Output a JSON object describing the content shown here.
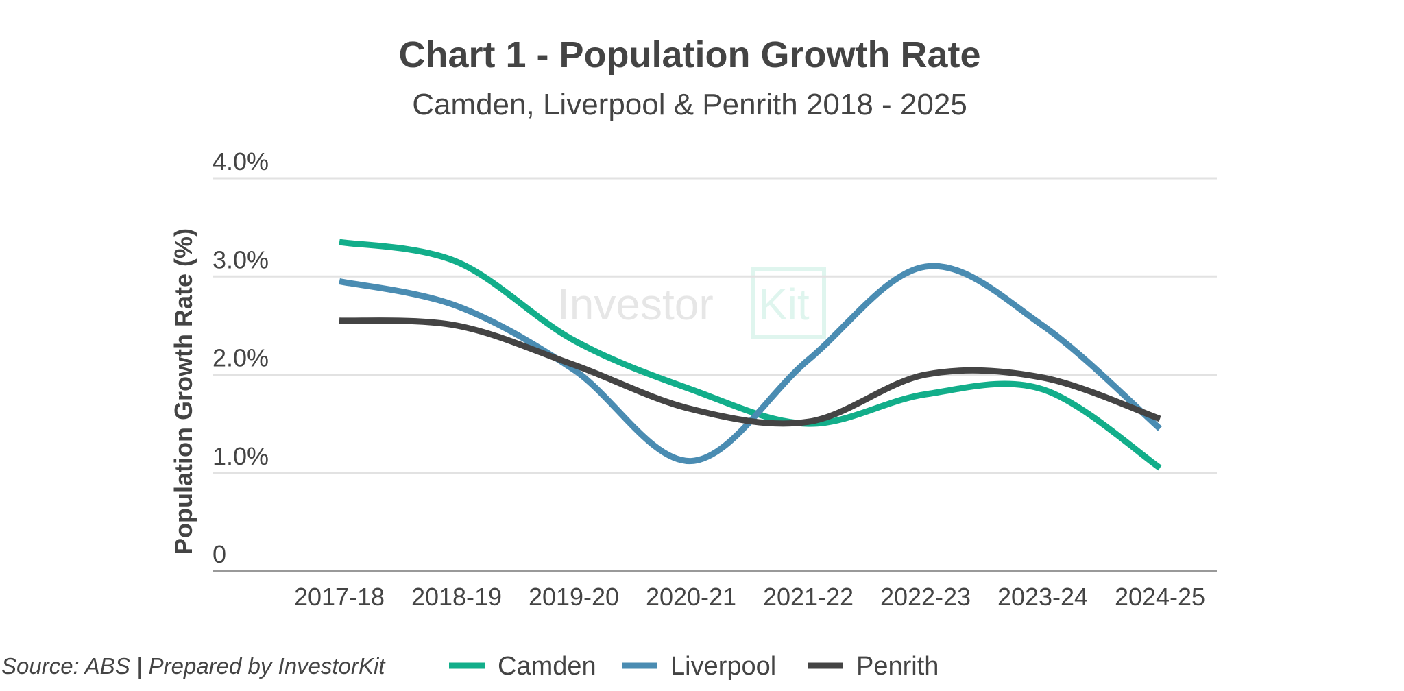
{
  "chart_data": {
    "type": "line",
    "title": "Chart 1 - Population Growth Rate",
    "subtitle": "Camden, Liverpool & Penrith 2018 - 2025",
    "ylabel": "Population Growth Rate (%)",
    "xlabel": "",
    "categories": [
      "2017-18",
      "2018-19",
      "2019-20",
      "2020-21",
      "2021-22",
      "2022-23",
      "2023-24",
      "2024-25"
    ],
    "ylim": [
      0,
      4
    ],
    "yticks": [
      {
        "value": 0,
        "label": "0"
      },
      {
        "value": 1,
        "label": "1.0%"
      },
      {
        "value": 2,
        "label": "2.0%"
      },
      {
        "value": 3,
        "label": "3.0%"
      },
      {
        "value": 4,
        "label": "4.0%"
      }
    ],
    "grid": true,
    "legend_position": "bottom",
    "series": [
      {
        "name": "Camden",
        "color": "#12AE8A",
        "values": [
          3.35,
          3.15,
          2.35,
          1.85,
          1.5,
          1.8,
          1.85,
          1.05
        ]
      },
      {
        "name": "Liverpool",
        "color": "#4A8CB2",
        "values": [
          2.95,
          2.7,
          2.05,
          1.12,
          2.15,
          3.1,
          2.5,
          1.45
        ]
      },
      {
        "name": "Penrith",
        "color": "#444444",
        "values": [
          2.55,
          2.5,
          2.1,
          1.65,
          1.52,
          2.0,
          1.97,
          1.55
        ]
      }
    ]
  },
  "source": "Source: ABS | Prepared by InvestorKit",
  "watermark": {
    "text_part1": "Investor",
    "text_part2": "Kit"
  }
}
